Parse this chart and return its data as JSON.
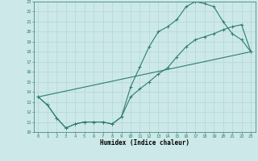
{
  "xlabel": "Humidex (Indice chaleur)",
  "bg_color": "#cde8e8",
  "grid_color": "#b0d8d8",
  "line_color": "#2e7d6e",
  "xlim": [
    -0.5,
    23.5
  ],
  "ylim": [
    10,
    23
  ],
  "xticks": [
    0,
    1,
    2,
    3,
    4,
    5,
    6,
    7,
    8,
    9,
    10,
    11,
    12,
    13,
    14,
    15,
    16,
    17,
    18,
    19,
    20,
    21,
    22,
    23
  ],
  "yticks": [
    10,
    11,
    12,
    13,
    14,
    15,
    16,
    17,
    18,
    19,
    20,
    21,
    22,
    23
  ],
  "line1_x": [
    0,
    1,
    2,
    3,
    4,
    5,
    6,
    7,
    8,
    9,
    10,
    11,
    12,
    13,
    14,
    15,
    16,
    17,
    18,
    19,
    20,
    21,
    22,
    23
  ],
  "line1_y": [
    13.5,
    12.7,
    11.4,
    10.4,
    10.8,
    11.0,
    11.0,
    11.0,
    10.8,
    11.5,
    13.5,
    14.3,
    15.0,
    15.8,
    16.4,
    17.5,
    18.5,
    19.2,
    19.5,
    19.8,
    20.2,
    20.5,
    20.7,
    18.0
  ],
  "line2_x": [
    0,
    1,
    2,
    3,
    4,
    5,
    6,
    7,
    8,
    9,
    10,
    11,
    12,
    13,
    14,
    15,
    16,
    17,
    18,
    19,
    20,
    21,
    22,
    23
  ],
  "line2_y": [
    13.5,
    12.7,
    11.4,
    10.4,
    10.8,
    11.0,
    11.0,
    11.0,
    10.8,
    11.5,
    14.5,
    16.5,
    18.5,
    20.0,
    20.5,
    21.2,
    22.5,
    23.0,
    22.8,
    22.5,
    21.0,
    19.8,
    19.2,
    18.0
  ],
  "line3_x": [
    0,
    23
  ],
  "line3_y": [
    13.5,
    18.0
  ]
}
